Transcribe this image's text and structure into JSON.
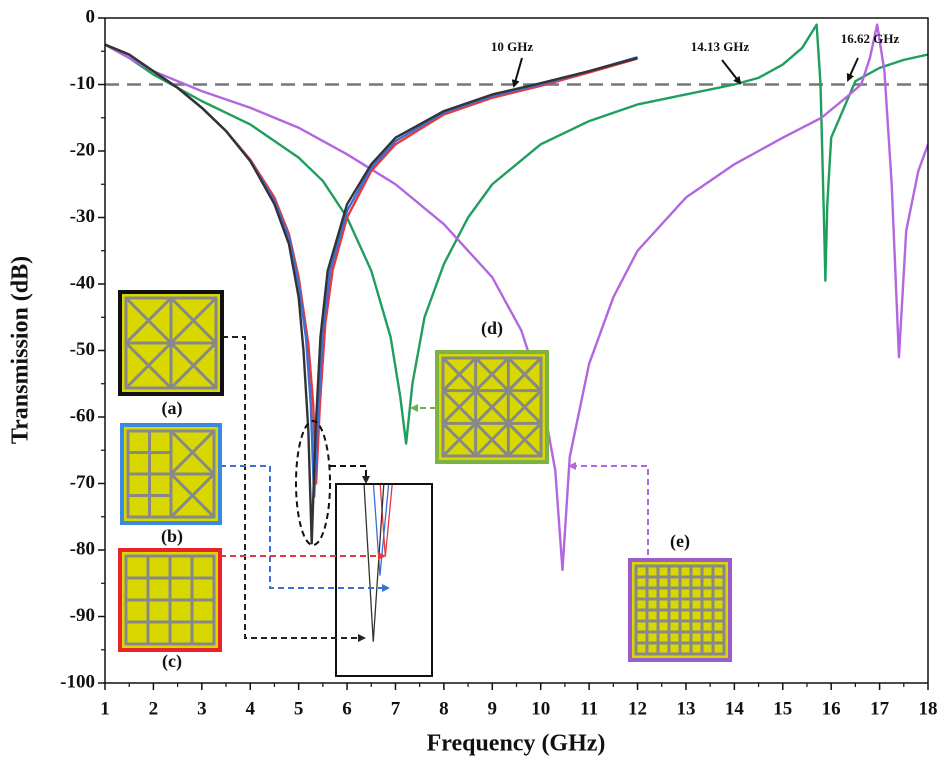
{
  "chart_data": {
    "type": "line",
    "xlabel": "Frequency (GHz)",
    "ylabel": "Transmission (dB)",
    "xlim": [
      1,
      18
    ],
    "ylim": [
      -100,
      0
    ],
    "xticks": [
      1,
      2,
      3,
      4,
      5,
      6,
      7,
      8,
      9,
      10,
      11,
      12,
      13,
      14,
      15,
      16,
      17,
      18
    ],
    "yticks": [
      0,
      -10,
      -20,
      -30,
      -40,
      -50,
      -60,
      -70,
      -80,
      -90,
      -100
    ],
    "reference_line": -10,
    "annotations": [
      {
        "text": "10 GHz"
      },
      {
        "text": "14.13 GHz"
      },
      {
        "text": "16.62 GHz"
      }
    ],
    "series": [
      {
        "name": "(a)",
        "color": "#333333",
        "x": [
          1,
          1.5,
          2,
          2.5,
          3,
          3.5,
          4,
          4.5,
          4.8,
          5.0,
          5.1,
          5.2,
          5.27,
          5.35,
          5.45,
          5.6,
          6,
          6.5,
          7,
          8,
          9,
          10,
          11,
          12
        ],
        "values": [
          -4,
          -5.5,
          -8,
          -10.5,
          -13.5,
          -17,
          -21.5,
          -28,
          -34,
          -42,
          -50,
          -62,
          -79,
          -62,
          -48,
          -38,
          -28,
          -22,
          -18,
          -14,
          -11.5,
          -9.8,
          -8,
          -6
        ]
      },
      {
        "name": "(b)",
        "color": "#3a6fd8",
        "x": [
          1,
          1.5,
          2,
          2.5,
          3,
          3.5,
          4,
          4.5,
          4.8,
          5.0,
          5.15,
          5.25,
          5.32,
          5.4,
          5.5,
          5.65,
          6,
          6.5,
          7,
          8,
          9,
          10,
          11,
          12
        ],
        "values": [
          -4,
          -5.5,
          -8,
          -10.5,
          -13.5,
          -17,
          -21.5,
          -27.5,
          -33,
          -40,
          -48,
          -58,
          -72,
          -60,
          -47,
          -38,
          -29,
          -22.5,
          -18.5,
          -14.2,
          -11.7,
          -10,
          -8,
          -5.9
        ]
      },
      {
        "name": "(c)",
        "color": "#e8383d",
        "x": [
          1,
          1.5,
          2,
          2.5,
          3,
          3.5,
          4,
          4.5,
          4.8,
          5.0,
          5.2,
          5.3,
          5.36,
          5.44,
          5.55,
          5.7,
          6,
          6.5,
          7,
          8,
          9,
          10,
          11,
          12
        ],
        "values": [
          -4,
          -5.5,
          -8,
          -10.5,
          -13.5,
          -17,
          -21.3,
          -27,
          -32.5,
          -39,
          -49,
          -58,
          -70,
          -58,
          -46,
          -38,
          -30,
          -23,
          -19,
          -14.5,
          -12,
          -10.2,
          -8.2,
          -6.1
        ]
      },
      {
        "name": "(d)",
        "color": "#1f9e5e",
        "x": [
          1,
          1.5,
          2,
          3,
          4,
          5,
          5.5,
          6,
          6.5,
          6.9,
          7.1,
          7.22,
          7.35,
          7.6,
          8,
          8.5,
          9,
          10,
          11,
          12,
          13,
          14,
          14.5,
          15,
          15.4,
          15.7,
          15.78,
          15.85,
          15.88,
          15.92,
          16,
          16.5,
          17,
          17.5,
          18
        ],
        "values": [
          -4,
          -6,
          -8.5,
          -12.5,
          -16,
          -21,
          -24.5,
          -30,
          -38,
          -48,
          -57,
          -64,
          -55,
          -45,
          -37,
          -30,
          -25,
          -19,
          -15.5,
          -13,
          -11.5,
          -10,
          -9,
          -7,
          -4.5,
          -1,
          -10,
          -30,
          -39.5,
          -28,
          -18,
          -9.5,
          -7.5,
          -6.3,
          -5.5
        ]
      },
      {
        "name": "(e)",
        "color": "#b266e0",
        "x": [
          1,
          2,
          3,
          4,
          5,
          6,
          7,
          8,
          9,
          9.6,
          10,
          10.3,
          10.45,
          10.6,
          11,
          11.5,
          12,
          13,
          14,
          15,
          15.8,
          16.3,
          16.62,
          16.8,
          16.95,
          17.1,
          17.25,
          17.4,
          17.55,
          17.8,
          18
        ],
        "values": [
          -4,
          -8,
          -11,
          -13.5,
          -16.5,
          -20.5,
          -25,
          -31,
          -39,
          -47,
          -56,
          -68,
          -83,
          -66,
          -52,
          -42,
          -35,
          -27,
          -22,
          -18,
          -15,
          -12,
          -10,
          -6,
          -1,
          -8,
          -25,
          -51,
          -32,
          -23,
          -19
        ]
      }
    ]
  }
}
